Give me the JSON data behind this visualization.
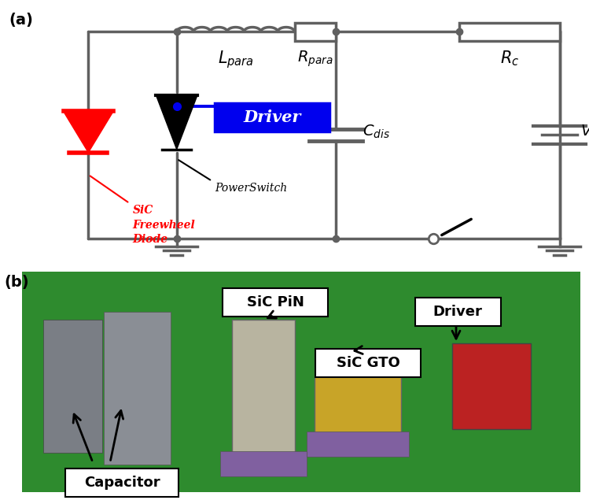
{
  "fig_width": 7.49,
  "fig_height": 6.35,
  "bg_color": "#ffffff",
  "lc": "#606060",
  "lw": 2.5,
  "red": "#ff0000",
  "blue": "#0000ee",
  "black": "#000000",
  "panel_a": "(a)",
  "panel_b": "(b)",
  "lbl_L": "$L_{para}$",
  "lbl_R": "$R_{para}$",
  "lbl_Rc": "$R_c$",
  "lbl_Cdis": "$C_{dis}$",
  "lbl_Vdc": "$V_{dc}$",
  "lbl_driver": "Driver",
  "lbl_switch": "PowerSwitch",
  "lbl_freewheel": "SiC\nFreewheel\nDiode",
  "lbl_sic_pin": "SiC PiN",
  "lbl_sic_gto": "SiC GTO",
  "lbl_driver_b": "Driver",
  "lbl_cap": "Capacitor",
  "photo_green": "#2e8b2e"
}
